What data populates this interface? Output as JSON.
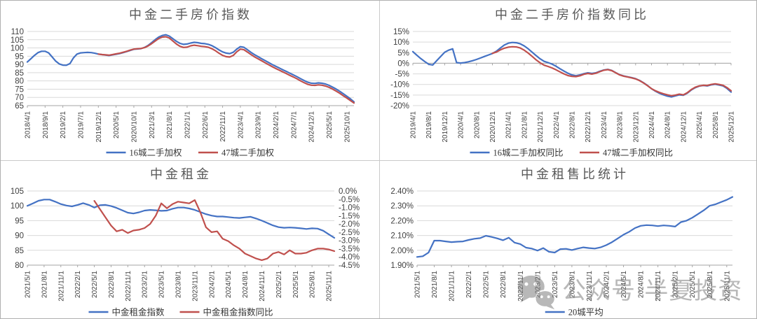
{
  "watermark": {
    "icon": "wechat-icon",
    "text": "公众号·半夏投资",
    "color": "#7f7f7f"
  },
  "chart_data": [
    {
      "id": "second-hand-price-index",
      "type": "line",
      "title": "中金二手房价指数",
      "grid": true,
      "legend_position": "bottom",
      "x_start_label": "2018/4/1",
      "x_tick_interval": 5,
      "total_points": 93,
      "x_tick_labels": [
        "2018/4/1",
        "2018/9/1",
        "2019/2/1",
        "2019/7/1",
        "2019/12/1",
        "2020/5/1",
        "2020/10/1",
        "2021/3/1",
        "2021/8/1",
        "2022/1/1",
        "2022/6/1",
        "2022/11/1",
        "2023/4/1",
        "2023/9/1",
        "2024/2/1",
        "2024/7/1",
        "2024/12/1",
        "2025/5/1",
        "2025/10/1"
      ],
      "y_left": {
        "min": 65,
        "max": 110,
        "tick_labels": [
          "110",
          "105",
          "100",
          "95",
          "90",
          "85",
          "80",
          "75",
          "70",
          "65"
        ]
      },
      "series": [
        {
          "name": "16城二手加权",
          "color": "#4472C4",
          "axis": "left",
          "start_index": 0,
          "values": [
            91.5,
            93.5,
            95.5,
            97.2,
            98,
            98,
            97,
            94.5,
            92,
            90.3,
            89.6,
            89.5,
            90.5,
            94,
            96.3,
            97,
            97.2,
            97.3,
            97.2,
            96.8,
            96.3,
            96,
            95.7,
            95.4,
            95.8,
            96.2,
            96.6,
            97.2,
            97.8,
            98.5,
            99.2,
            99.4,
            99.6,
            100.3,
            101.5,
            103.2,
            105,
            106.6,
            107.6,
            108,
            107.2,
            105.6,
            104,
            102.8,
            102.2,
            102.4,
            103,
            103.4,
            103.2,
            102.8,
            102.6,
            102.2,
            101.4,
            100.2,
            98.8,
            97.6,
            96.9,
            96.6,
            97.4,
            99.3,
            100.8,
            100.4,
            98.9,
            97.3,
            95.9,
            94.7,
            93.5,
            92.3,
            91.1,
            89.9,
            88.8,
            87.8,
            86.7,
            85.7,
            84.6,
            83.6,
            82.5,
            81.3,
            80.2,
            79.2,
            78.6,
            78.5,
            78.8,
            78.6,
            78.1,
            77.3,
            76.2,
            75,
            73.7,
            72.2,
            70.7,
            69.1,
            67.3
          ]
        },
        {
          "name": "47城二手加权",
          "color": "#C0504D",
          "axis": "left",
          "start_index": 20,
          "values": [
            96.3,
            96,
            95.8,
            95.6,
            96,
            96.4,
            96.8,
            97.4,
            98,
            98.7,
            99.3,
            99.5,
            99.7,
            100.2,
            101.2,
            102.6,
            104.2,
            105.7,
            106.6,
            106.8,
            106,
            104.2,
            102.4,
            101,
            100.3,
            100.5,
            101.3,
            101.7,
            101.4,
            101,
            100.8,
            100.4,
            99.5,
            98.3,
            96.8,
            95.5,
            94.7,
            94.5,
            95.5,
            97.7,
            99.3,
            98.9,
            97.5,
            96,
            94.6,
            93.4,
            92.2,
            91,
            89.8,
            88.6,
            87.5,
            86.5,
            85.4,
            84.4,
            83.3,
            82.3,
            81.2,
            80,
            78.9,
            77.9,
            77.4,
            77.3,
            77.6,
            77.4,
            76.9,
            76.1,
            75,
            73.8,
            72.5,
            71,
            69.6,
            68.1,
            66.6
          ]
        }
      ]
    },
    {
      "id": "second-hand-price-yoy",
      "type": "line",
      "title": "中金二手房价指数同比",
      "grid": true,
      "legend_position": "bottom",
      "x_start_label": "2019/4/1",
      "x_tick_interval": 4,
      "total_points": 81,
      "x_axis_value": 0,
      "x_tick_labels": [
        "2019/4/1",
        "2019/8/1",
        "2019/12/1",
        "2020/4/1",
        "2020/8/1",
        "2020/12/1",
        "2021/4/1",
        "2021/8/1",
        "2021/12/1",
        "2022/4/1",
        "2022/8/1",
        "2022/12/1",
        "2023/4/1",
        "2023/8/1",
        "2023/12/1",
        "2024/4/1",
        "2024/8/1",
        "2024/12/1",
        "2025/4/1",
        "2025/8/1",
        "2025/12/1"
      ],
      "y_left": {
        "min": -20,
        "max": 15,
        "tick_labels": [
          "15%",
          "10%",
          "5%",
          "0%",
          "-5%",
          "-10%",
          "-15%",
          "-20%"
        ]
      },
      "series": [
        {
          "name": "16城二手加权同比",
          "color": "#4472C4",
          "axis": "left",
          "start_index": 0,
          "values": [
            5.5,
            3.8,
            2.2,
            0.8,
            -0.5,
            -0.8,
            1.2,
            3.2,
            5.2,
            6.2,
            6.8,
            0.3,
            0.1,
            0.3,
            0.7,
            1.2,
            1.8,
            2.5,
            3.2,
            3.9,
            4.6,
            5.7,
            7.2,
            8.6,
            9.5,
            9.8,
            9.7,
            9.2,
            8.2,
            6.8,
            5.2,
            3.6,
            2.1,
            0.9,
            0.3,
            -0.4,
            -1.4,
            -2.6,
            -3.7,
            -4.7,
            -5.5,
            -5.9,
            -5.5,
            -4.9,
            -4.5,
            -4.8,
            -4.5,
            -3.8,
            -3.2,
            -2.9,
            -3.4,
            -4.4,
            -5.4,
            -6,
            -6.4,
            -6.8,
            -7.3,
            -8.1,
            -9.2,
            -10.5,
            -12,
            -13.2,
            -14.2,
            -14.9,
            -15.5,
            -15.9,
            -15.4,
            -14.9,
            -15.1,
            -14.1,
            -12.6,
            -11.5,
            -10.8,
            -10.5,
            -10.7,
            -10.2,
            -9.9,
            -10.3,
            -10.7,
            -11.9,
            -13.6
          ]
        },
        {
          "name": "47城二手加权同比",
          "color": "#C0504D",
          "axis": "left",
          "start_index": 20,
          "values": [
            4.7,
            5.3,
            6.3,
            7.1,
            7.6,
            7.8,
            7.7,
            7.2,
            6.2,
            4.8,
            3.2,
            1.6,
            0.2,
            -0.9,
            -1.5,
            -2.2,
            -3.1,
            -4.1,
            -5,
            -5.8,
            -6.2,
            -6.3,
            -5.9,
            -5.2,
            -4.8,
            -5.1,
            -4.7,
            -4,
            -3.3,
            -3,
            -3.5,
            -4.5,
            -5.5,
            -6.1,
            -6.5,
            -6.9,
            -7.4,
            -8.2,
            -9.3,
            -10.6,
            -12,
            -13,
            -13.8,
            -14.4,
            -14.9,
            -15.3,
            -15,
            -14.6,
            -14.9,
            -13.9,
            -12.4,
            -11.3,
            -10.7,
            -10.4,
            -10.5,
            -10,
            -9.7,
            -10,
            -10.4,
            -11.5,
            -13
          ]
        }
      ]
    },
    {
      "id": "rent-index",
      "type": "line",
      "title": "中金租金",
      "grid": true,
      "legend_position": "bottom",
      "x_start_label": "2021/5/1",
      "x_tick_interval": 3,
      "total_points": 56,
      "x_tick_labels": [
        "2021/5/1",
        "2021/8/1",
        "2021/11/1",
        "2022/2/1",
        "2022/5/1",
        "2022/8/1",
        "2022/11/1",
        "2023/2/1",
        "2023/5/1",
        "2023/8/1",
        "2023/11/1",
        "2024/2/1",
        "2024/5/1",
        "2024/8/1",
        "2024/11/1",
        "2025/2/1",
        "2025/5/1",
        "2025/8/1",
        "2025/11/1"
      ],
      "y_left": {
        "min": 80,
        "max": 105,
        "tick_labels": [
          "105",
          "100",
          "95",
          "90",
          "85",
          "80"
        ]
      },
      "y_right": {
        "min": -4.5,
        "max": 0,
        "tick_labels": [
          "0.0%",
          "-0.5%",
          "-1.0%",
          "-1.5%",
          "-2.0%",
          "-2.5%",
          "-3.0%",
          "-3.5%",
          "-4.0%",
          "-4.5%"
        ]
      },
      "series": [
        {
          "name": "中金租金指数",
          "color": "#4472C4",
          "axis": "left",
          "start_index": 0,
          "values": [
            100,
            100.8,
            101.7,
            102.1,
            102.1,
            101.4,
            100.6,
            100.1,
            99.8,
            100.3,
            100.9,
            100.3,
            99.4,
            100.2,
            100.3,
            99.9,
            99.3,
            98.5,
            97.7,
            97.4,
            97.8,
            98.4,
            98.6,
            98.5,
            98.3,
            98.4,
            99,
            99.4,
            99.4,
            99.1,
            98.6,
            97.9,
            97.2,
            96.7,
            96.4,
            96.4,
            96.2,
            96,
            95.9,
            96.1,
            96.3,
            95.7,
            95,
            94.2,
            93.4,
            92.8,
            92.6,
            92.7,
            92.6,
            92.4,
            92.2,
            92.4,
            92.3,
            91.6,
            90.4,
            89.2
          ]
        },
        {
          "name": "中金租金指数同比",
          "color": "#C0504D",
          "axis": "right",
          "start_index": 12,
          "values": [
            -0.6,
            -1.1,
            -1.6,
            -2.1,
            -2.45,
            -2.35,
            -2.55,
            -2.4,
            -2.35,
            -2.25,
            -2,
            -1.5,
            -0.75,
            -1.05,
            -0.8,
            -0.65,
            -0.7,
            -0.75,
            -0.55,
            -1.3,
            -2.2,
            -2.5,
            -2.45,
            -2.9,
            -3.05,
            -3.3,
            -3.5,
            -3.8,
            -3.95,
            -4.1,
            -4.2,
            -4.1,
            -3.8,
            -3.7,
            -3.85,
            -3.6,
            -3.8,
            -3.8,
            -3.75,
            -3.6,
            -3.5,
            -3.5,
            -3.55,
            -3.65
          ]
        }
      ]
    },
    {
      "id": "rent-to-price-ratio",
      "type": "line",
      "title": "中金租售比统计",
      "grid": true,
      "legend_position": "bottom",
      "x_start_label": "2021/5/1",
      "x_tick_interval": 3,
      "total_points": 56,
      "x_tick_labels": [
        "2021/5/1",
        "2021/8/1",
        "2021/11/1",
        "2022/2/1",
        "2022/5/1",
        "2022/8/1",
        "2022/11/1",
        "2023/2/1",
        "2023/5/1",
        "2023/8/1",
        "2023/11/1",
        "2024/2/1",
        "2024/5/1",
        "2024/8/1",
        "2024/11/1",
        "2025/2/1",
        "2025/5/1",
        "2025/8/1",
        "2025/11/1"
      ],
      "y_left": {
        "min": 1.9,
        "max": 2.4,
        "tick_labels": [
          "2.40%",
          "2.30%",
          "2.20%",
          "2.10%",
          "2.00%",
          "1.90%"
        ]
      },
      "series": [
        {
          "name": "20城平均",
          "color": "#4472C4",
          "axis": "left",
          "start_index": 0,
          "values": [
            1.955,
            1.96,
            1.985,
            2.065,
            2.065,
            2.06,
            2.055,
            2.058,
            2.06,
            2.07,
            2.078,
            2.082,
            2.098,
            2.09,
            2.08,
            2.068,
            2.085,
            2.052,
            2.042,
            2.018,
            2.012,
            1.998,
            2.015,
            1.99,
            1.985,
            2.008,
            2.01,
            2.002,
            2.012,
            2.02,
            2.015,
            2.012,
            2.02,
            2.035,
            2.055,
            2.08,
            2.105,
            2.125,
            2.15,
            2.165,
            2.17,
            2.168,
            2.163,
            2.168,
            2.165,
            2.16,
            2.19,
            2.2,
            2.22,
            2.245,
            2.27,
            2.3,
            2.31,
            2.325,
            2.34,
            2.36
          ]
        }
      ]
    }
  ]
}
